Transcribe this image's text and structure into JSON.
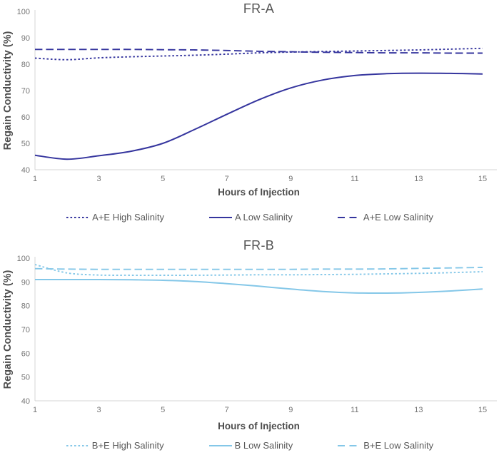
{
  "chart_data": [
    {
      "type": "line",
      "title": "FR-A",
      "xlabel": "Hours of Injection",
      "ylabel": "Regain Conductivity (%)",
      "color": "#35359e",
      "xlim": [
        1,
        15
      ],
      "ylim": [
        40,
        100
      ],
      "xticks": [
        1,
        3,
        5,
        7,
        9,
        11,
        13,
        15
      ],
      "yticks": [
        40,
        50,
        60,
        70,
        80,
        90,
        100
      ],
      "grid": false,
      "legend_position": "bottom",
      "x": [
        1,
        2,
        3,
        4,
        5,
        6,
        7,
        8,
        9,
        10,
        11,
        12,
        13,
        14,
        15
      ],
      "series": [
        {
          "name": "A+E High Salinity",
          "style": "dotted",
          "values": [
            82.3,
            81.7,
            82.4,
            82.8,
            83.1,
            83.4,
            83.8,
            84.3,
            84.6,
            84.8,
            85.0,
            85.2,
            85.4,
            85.7,
            86.0
          ]
        },
        {
          "name": "A Low Salinity",
          "style": "solid",
          "values": [
            45.5,
            44.0,
            45.3,
            47.0,
            50.0,
            55.3,
            61.0,
            66.5,
            71.0,
            74.0,
            75.7,
            76.4,
            76.6,
            76.5,
            76.3
          ]
        },
        {
          "name": "A+E Low Salinity",
          "style": "dashed",
          "values": [
            85.6,
            85.6,
            85.6,
            85.6,
            85.5,
            85.4,
            85.2,
            84.9,
            84.7,
            84.5,
            84.4,
            84.3,
            84.3,
            84.2,
            84.2
          ]
        }
      ]
    },
    {
      "type": "line",
      "title": "FR-B",
      "xlabel": "Hours of Injection",
      "ylabel": "Regain Conductivity (%)",
      "color": "#84c7e8",
      "xlim": [
        1,
        15
      ],
      "ylim": [
        40,
        100
      ],
      "xticks": [
        1,
        3,
        5,
        7,
        9,
        11,
        13,
        15
      ],
      "yticks": [
        40,
        50,
        60,
        70,
        80,
        90,
        100
      ],
      "grid": false,
      "legend_position": "bottom",
      "x": [
        1,
        2,
        3,
        4,
        5,
        6,
        7,
        8,
        9,
        10,
        11,
        12,
        13,
        14,
        15
      ],
      "series": [
        {
          "name": "B+E High Salinity",
          "style": "dotted",
          "values": [
            97.3,
            93.8,
            92.9,
            92.8,
            92.8,
            92.8,
            92.9,
            93.0,
            93.0,
            93.1,
            93.2,
            93.4,
            93.6,
            93.9,
            94.3
          ]
        },
        {
          "name": "B Low Salinity",
          "style": "solid",
          "values": [
            91.0,
            91.0,
            91.0,
            90.9,
            90.7,
            90.2,
            89.3,
            88.2,
            87.0,
            86.0,
            85.4,
            85.3,
            85.6,
            86.2,
            87.0
          ]
        },
        {
          "name": "B+E Low Salinity",
          "style": "dashed",
          "values": [
            95.6,
            95.4,
            95.3,
            95.3,
            95.3,
            95.3,
            95.3,
            95.3,
            95.3,
            95.4,
            95.4,
            95.5,
            95.7,
            95.9,
            96.1
          ]
        }
      ]
    }
  ]
}
